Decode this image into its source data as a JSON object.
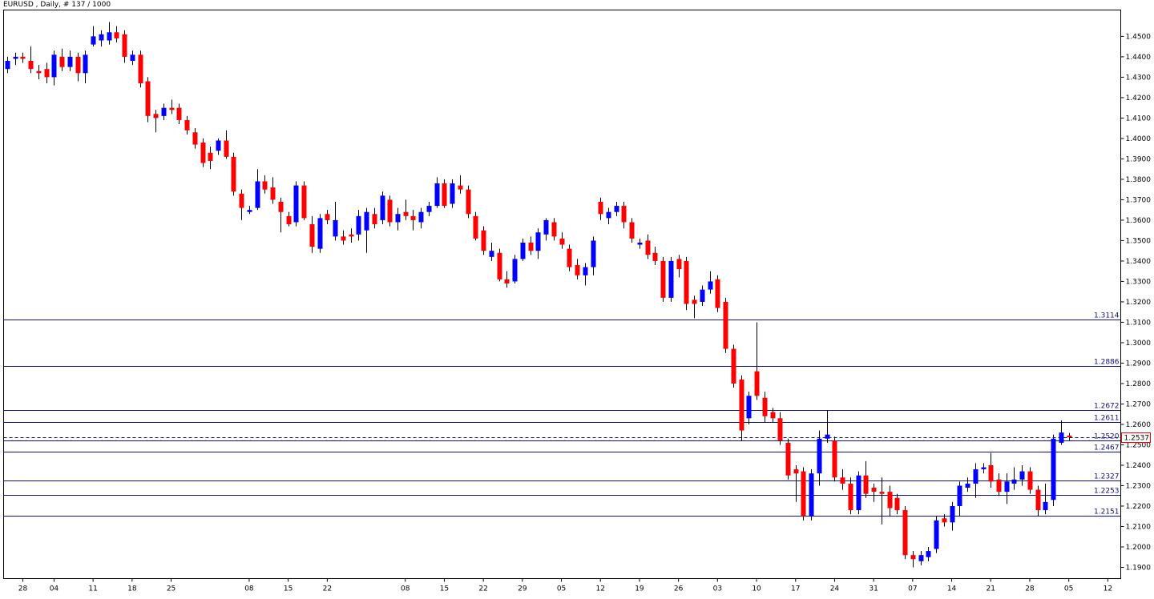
{
  "chart_data": {
    "type": "candlestick",
    "title": "EURUSD , Daily, # 137 / 1000",
    "up_color": "#0000ff",
    "down_color": "#ff0000",
    "level_color": "#10107a",
    "ylim": [
      1.1845,
      1.4629
    ],
    "yticks": [
      {
        "value": 1.45,
        "label": "1.4500"
      },
      {
        "value": 1.44,
        "label": "1.4400"
      },
      {
        "value": 1.43,
        "label": "1.4300"
      },
      {
        "value": 1.42,
        "label": "1.4200"
      },
      {
        "value": 1.41,
        "label": "1.4100"
      },
      {
        "value": 1.4,
        "label": "1.4000"
      },
      {
        "value": 1.39,
        "label": "1.3900"
      },
      {
        "value": 1.38,
        "label": "1.3800"
      },
      {
        "value": 1.37,
        "label": "1.3700"
      },
      {
        "value": 1.36,
        "label": "1.3600"
      },
      {
        "value": 1.35,
        "label": "1.3500"
      },
      {
        "value": 1.34,
        "label": "1.3400"
      },
      {
        "value": 1.33,
        "label": "1.3300"
      },
      {
        "value": 1.32,
        "label": "1.3200"
      },
      {
        "value": 1.31,
        "label": "1.3100"
      },
      {
        "value": 1.3,
        "label": "1.3000"
      },
      {
        "value": 1.29,
        "label": "1.2900"
      },
      {
        "value": 1.28,
        "label": "1.2800"
      },
      {
        "value": 1.27,
        "label": "1.2700"
      },
      {
        "value": 1.26,
        "label": "1.2600"
      },
      {
        "value": 1.25,
        "label": "1.2500"
      },
      {
        "value": 1.24,
        "label": "1.2400"
      },
      {
        "value": 1.23,
        "label": "1.2300"
      },
      {
        "value": 1.22,
        "label": "1.2200"
      },
      {
        "value": 1.21,
        "label": "1.2100"
      },
      {
        "value": 1.2,
        "label": "1.2000"
      },
      {
        "value": 1.19,
        "label": "1.1900"
      }
    ],
    "xticks": [
      {
        "value": 2,
        "label": "28"
      },
      {
        "value": 6,
        "label": "04"
      },
      {
        "value": 11,
        "label": "11"
      },
      {
        "value": 16,
        "label": "18"
      },
      {
        "value": 21,
        "label": "25"
      },
      {
        "value": 31,
        "label": "08"
      },
      {
        "value": 36,
        "label": "15"
      },
      {
        "value": 41,
        "label": "22"
      },
      {
        "value": 51,
        "label": "08"
      },
      {
        "value": 56,
        "label": "15"
      },
      {
        "value": 61,
        "label": "22"
      },
      {
        "value": 66,
        "label": "29"
      },
      {
        "value": 71,
        "label": "05"
      },
      {
        "value": 76,
        "label": "12"
      },
      {
        "value": 81,
        "label": "19"
      },
      {
        "value": 86,
        "label": "26"
      },
      {
        "value": 91,
        "label": "03"
      },
      {
        "value": 96,
        "label": "10"
      },
      {
        "value": 101,
        "label": "17"
      },
      {
        "value": 106,
        "label": "24"
      },
      {
        "value": 111,
        "label": "31"
      },
      {
        "value": 116,
        "label": "07"
      },
      {
        "value": 121,
        "label": "14"
      },
      {
        "value": 126,
        "label": "21"
      },
      {
        "value": 131,
        "label": "28"
      },
      {
        "value": 136,
        "label": "05"
      },
      {
        "value": 141,
        "label": "12"
      }
    ],
    "levels": [
      1.3114,
      1.2886,
      1.2672,
      1.2611,
      {
        "value": 1.252,
        "label": "1.2520"
      },
      1.2467,
      1.2327,
      1.2253,
      1.2151
    ],
    "bid": 1.2537,
    "ohlc": [
      [
        1.434,
        1.44,
        1.432,
        1.438
      ],
      [
        1.439,
        1.442,
        1.436,
        1.44
      ],
      [
        1.44,
        1.442,
        1.437,
        1.439
      ],
      [
        1.438,
        1.445,
        1.432,
        1.434
      ],
      [
        1.433,
        1.436,
        1.429,
        1.432
      ],
      [
        1.434,
        1.437,
        1.427,
        1.43
      ],
      [
        1.43,
        1.443,
        1.426,
        1.441
      ],
      [
        1.44,
        1.444,
        1.433,
        1.435
      ],
      [
        1.435,
        1.443,
        1.433,
        1.44
      ],
      [
        1.44,
        1.442,
        1.428,
        1.432
      ],
      [
        1.432,
        1.443,
        1.427,
        1.441
      ],
      [
        1.446,
        1.455,
        1.445,
        1.45
      ],
      [
        1.448,
        1.453,
        1.445,
        1.451
      ],
      [
        1.448,
        1.457,
        1.446,
        1.452
      ],
      [
        1.452,
        1.455,
        1.447,
        1.449
      ],
      [
        1.451,
        1.453,
        1.437,
        1.44
      ],
      [
        1.438,
        1.443,
        1.436,
        1.441
      ],
      [
        1.441,
        1.443,
        1.425,
        1.427
      ],
      [
        1.428,
        1.43,
        1.408,
        1.411
      ],
      [
        1.412,
        1.414,
        1.403,
        1.41
      ],
      [
        1.411,
        1.417,
        1.409,
        1.415
      ],
      [
        1.415,
        1.419,
        1.412,
        1.414
      ],
      [
        1.415,
        1.417,
        1.407,
        1.409
      ],
      [
        1.409,
        1.411,
        1.402,
        1.404
      ],
      [
        1.403,
        1.405,
        1.395,
        1.397
      ],
      [
        1.398,
        1.4,
        1.386,
        1.388
      ],
      [
        1.393,
        1.396,
        1.385,
        1.389
      ],
      [
        1.394,
        1.4,
        1.392,
        1.399
      ],
      [
        1.399,
        1.404,
        1.39,
        1.391
      ],
      [
        1.391,
        1.393,
        1.372,
        1.374
      ],
      [
        1.373,
        1.375,
        1.36,
        1.366
      ],
      [
        1.364,
        1.367,
        1.363,
        1.365
      ],
      [
        1.366,
        1.385,
        1.365,
        1.379
      ],
      [
        1.379,
        1.382,
        1.373,
        1.375
      ],
      [
        1.376,
        1.381,
        1.368,
        1.37
      ],
      [
        1.369,
        1.371,
        1.354,
        1.364
      ],
      [
        1.362,
        1.364,
        1.357,
        1.358
      ],
      [
        1.359,
        1.379,
        1.357,
        1.377
      ],
      [
        1.377,
        1.379,
        1.36,
        1.361
      ],
      [
        1.358,
        1.362,
        1.344,
        1.347
      ],
      [
        1.346,
        1.363,
        1.344,
        1.361
      ],
      [
        1.363,
        1.365,
        1.358,
        1.36
      ],
      [
        1.352,
        1.369,
        1.35,
        1.36
      ],
      [
        1.352,
        1.355,
        1.348,
        1.35
      ],
      [
        1.353,
        1.356,
        1.349,
        1.352
      ],
      [
        1.353,
        1.365,
        1.35,
        1.362
      ],
      [
        1.355,
        1.366,
        1.344,
        1.364
      ],
      [
        1.363,
        1.366,
        1.356,
        1.358
      ],
      [
        1.36,
        1.374,
        1.358,
        1.372
      ],
      [
        1.37,
        1.372,
        1.357,
        1.359
      ],
      [
        1.359,
        1.366,
        1.355,
        1.363
      ],
      [
        1.364,
        1.37,
        1.36,
        1.362
      ],
      [
        1.362,
        1.365,
        1.355,
        1.36
      ],
      [
        1.359,
        1.366,
        1.356,
        1.364
      ],
      [
        1.364,
        1.369,
        1.362,
        1.367
      ],
      [
        1.367,
        1.381,
        1.366,
        1.378
      ],
      [
        1.378,
        1.38,
        1.366,
        1.367
      ],
      [
        1.368,
        1.38,
        1.366,
        1.378
      ],
      [
        1.377,
        1.382,
        1.373,
        1.375
      ],
      [
        1.375,
        1.377,
        1.361,
        1.363
      ],
      [
        1.362,
        1.364,
        1.35,
        1.351
      ],
      [
        1.355,
        1.357,
        1.343,
        1.345
      ],
      [
        1.342,
        1.349,
        1.34,
        1.345
      ],
      [
        1.344,
        1.346,
        1.33,
        1.331
      ],
      [
        1.331,
        1.335,
        1.327,
        1.329
      ],
      [
        1.33,
        1.343,
        1.329,
        1.341
      ],
      [
        1.341,
        1.351,
        1.34,
        1.349
      ],
      [
        1.349,
        1.352,
        1.343,
        1.345
      ],
      [
        1.345,
        1.356,
        1.341,
        1.354
      ],
      [
        1.353,
        1.361,
        1.35,
        1.36
      ],
      [
        1.359,
        1.361,
        1.35,
        1.352
      ],
      [
        1.351,
        1.354,
        1.346,
        1.348
      ],
      [
        1.346,
        1.348,
        1.335,
        1.337
      ],
      [
        1.338,
        1.341,
        1.331,
        1.333
      ],
      [
        1.333,
        1.339,
        1.328,
        1.337
      ],
      [
        1.337,
        1.352,
        1.333,
        1.35
      ],
      [
        1.369,
        1.371,
        1.36,
        1.363
      ],
      [
        1.361,
        1.366,
        1.358,
        1.364
      ],
      [
        1.364,
        1.369,
        1.362,
        1.367
      ],
      [
        1.367,
        1.369,
        1.356,
        1.359
      ],
      [
        1.359,
        1.361,
        1.349,
        1.351
      ],
      [
        1.348,
        1.351,
        1.346,
        1.349
      ],
      [
        1.35,
        1.353,
        1.341,
        1.343
      ],
      [
        1.344,
        1.347,
        1.338,
        1.34
      ],
      [
        1.34,
        1.342,
        1.32,
        1.322
      ],
      [
        1.322,
        1.342,
        1.32,
        1.34
      ],
      [
        1.341,
        1.343,
        1.332,
        1.336
      ],
      [
        1.34,
        1.342,
        1.316,
        1.319
      ],
      [
        1.321,
        1.323,
        1.312,
        1.319
      ],
      [
        1.32,
        1.328,
        1.318,
        1.326
      ],
      [
        1.326,
        1.335,
        1.324,
        1.33
      ],
      [
        1.331,
        1.333,
        1.315,
        1.317
      ],
      [
        1.32,
        1.322,
        1.295,
        1.297
      ],
      [
        1.297,
        1.299,
        1.278,
        1.28
      ],
      [
        1.282,
        1.284,
        1.252,
        1.257
      ],
      [
        1.263,
        1.276,
        1.26,
        1.274
      ],
      [
        1.286,
        1.31,
        1.272,
        1.274
      ],
      [
        1.273,
        1.276,
        1.261,
        1.264
      ],
      [
        1.266,
        1.268,
        1.261,
        1.263
      ],
      [
        1.263,
        1.266,
        1.25,
        1.252
      ],
      [
        1.251,
        1.253,
        1.233,
        1.235
      ],
      [
        1.238,
        1.24,
        1.222,
        1.236
      ],
      [
        1.237,
        1.239,
        1.213,
        1.215
      ],
      [
        1.215,
        1.238,
        1.213,
        1.236
      ],
      [
        1.236,
        1.257,
        1.23,
        1.253
      ],
      [
        1.253,
        1.267,
        1.251,
        1.255
      ],
      [
        1.252,
        1.254,
        1.232,
        1.234
      ],
      [
        1.234,
        1.238,
        1.228,
        1.231
      ],
      [
        1.231,
        1.234,
        1.216,
        1.218
      ],
      [
        1.218,
        1.237,
        1.216,
        1.235
      ],
      [
        1.235,
        1.242,
        1.224,
        1.226
      ],
      [
        1.229,
        1.231,
        1.222,
        1.227
      ],
      [
        1.227,
        1.234,
        1.211,
        1.226
      ],
      [
        1.227,
        1.23,
        1.215,
        1.219
      ],
      [
        1.224,
        1.226,
        1.216,
        1.218
      ],
      [
        1.218,
        1.22,
        1.194,
        1.196
      ],
      [
        1.196,
        1.198,
        1.19,
        1.194
      ],
      [
        1.193,
        1.198,
        1.191,
        1.196
      ],
      [
        1.195,
        1.2,
        1.193,
        1.198
      ],
      [
        1.199,
        1.215,
        1.197,
        1.213
      ],
      [
        1.214,
        1.216,
        1.21,
        1.212
      ],
      [
        1.212,
        1.222,
        1.208,
        1.22
      ],
      [
        1.22,
        1.232,
        1.215,
        1.23
      ],
      [
        1.229,
        1.234,
        1.227,
        1.231
      ],
      [
        1.231,
        1.241,
        1.224,
        1.238
      ],
      [
        1.238,
        1.241,
        1.236,
        1.239
      ],
      [
        1.24,
        1.246,
        1.229,
        1.232
      ],
      [
        1.233,
        1.236,
        1.225,
        1.227
      ],
      [
        1.227,
        1.236,
        1.221,
        1.232
      ],
      [
        1.231,
        1.239,
        1.228,
        1.233
      ],
      [
        1.233,
        1.24,
        1.23,
        1.237
      ],
      [
        1.237,
        1.239,
        1.226,
        1.228
      ],
      [
        1.228,
        1.23,
        1.215,
        1.218
      ],
      [
        1.218,
        1.231,
        1.216,
        1.222
      ],
      [
        1.223,
        1.255,
        1.22,
        1.253
      ],
      [
        1.251,
        1.262,
        1.25,
        1.256
      ],
      [
        1.2545,
        1.2558,
        1.2522,
        1.2537
      ]
    ]
  }
}
